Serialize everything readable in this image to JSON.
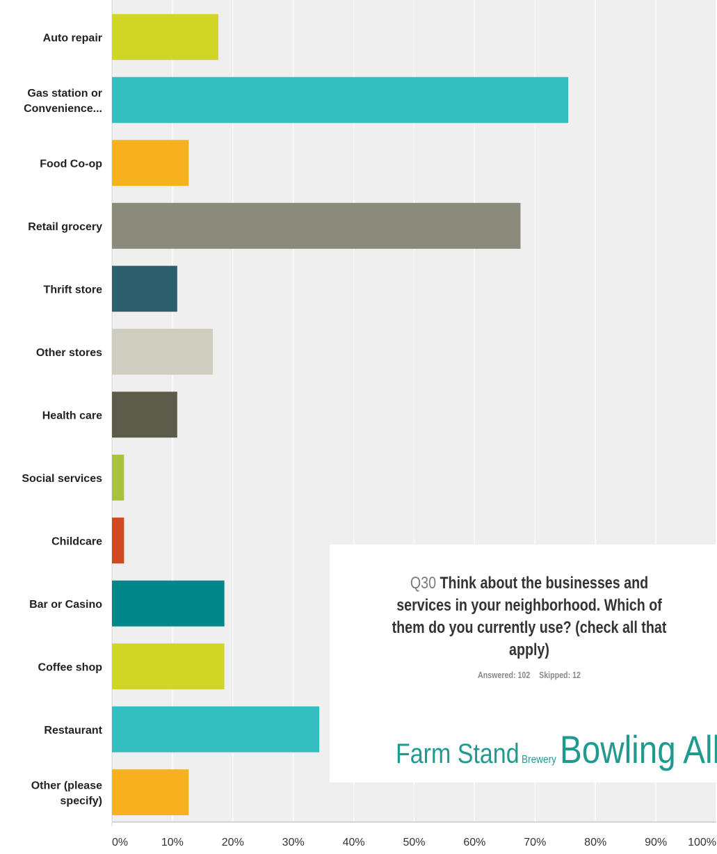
{
  "chart_data": {
    "type": "bar",
    "orientation": "horizontal",
    "categories": [
      [
        "Auto repair"
      ],
      [
        "Gas station or",
        "Convenience..."
      ],
      [
        "Food Co-op"
      ],
      [
        "Retail grocery"
      ],
      [
        "Thrift store"
      ],
      [
        "Other stores"
      ],
      [
        "Health care"
      ],
      [
        "Social services"
      ],
      [
        "Childcare"
      ],
      [
        "Bar or Casino"
      ],
      [
        "Coffee shop"
      ],
      [
        "Restaurant"
      ],
      [
        "Other (please",
        "specify)"
      ]
    ],
    "values": [
      17.6,
      75.5,
      12.7,
      67.6,
      10.8,
      16.7,
      10.8,
      2.0,
      2.0,
      18.6,
      18.6,
      34.3,
      12.7
    ],
    "colors": [
      "#d1d626",
      "#33bdbf",
      "#f7b01e",
      "#8a8b7a",
      "#2d5f6e",
      "#cfcdbf",
      "#5d5b4a",
      "#a9c23f",
      "#d04920",
      "#00878a",
      "#d1d626",
      "#33bdbf",
      "#f7b01e"
    ],
    "xticks": [
      "0%",
      "10%",
      "20%",
      "30%",
      "40%",
      "50%",
      "60%",
      "70%",
      "80%",
      "90%",
      "100%"
    ],
    "xlim": [
      0,
      100
    ],
    "grid": true,
    "background": "#efefef",
    "title": "",
    "xlabel": "",
    "ylabel": ""
  },
  "overlay": {
    "question_number": "Q30",
    "question_lines": [
      "Think about the businesses and",
      "services in your neighborhood. Which of",
      "them do you currently use? (check all that",
      "apply)"
    ],
    "answered": "Answered: 102",
    "skipped": "Skipped: 12",
    "word_cloud": [
      "Farm Stand",
      "Brewery",
      "Bowling Alley"
    ],
    "word_cloud_color": "#1f9a8f"
  }
}
